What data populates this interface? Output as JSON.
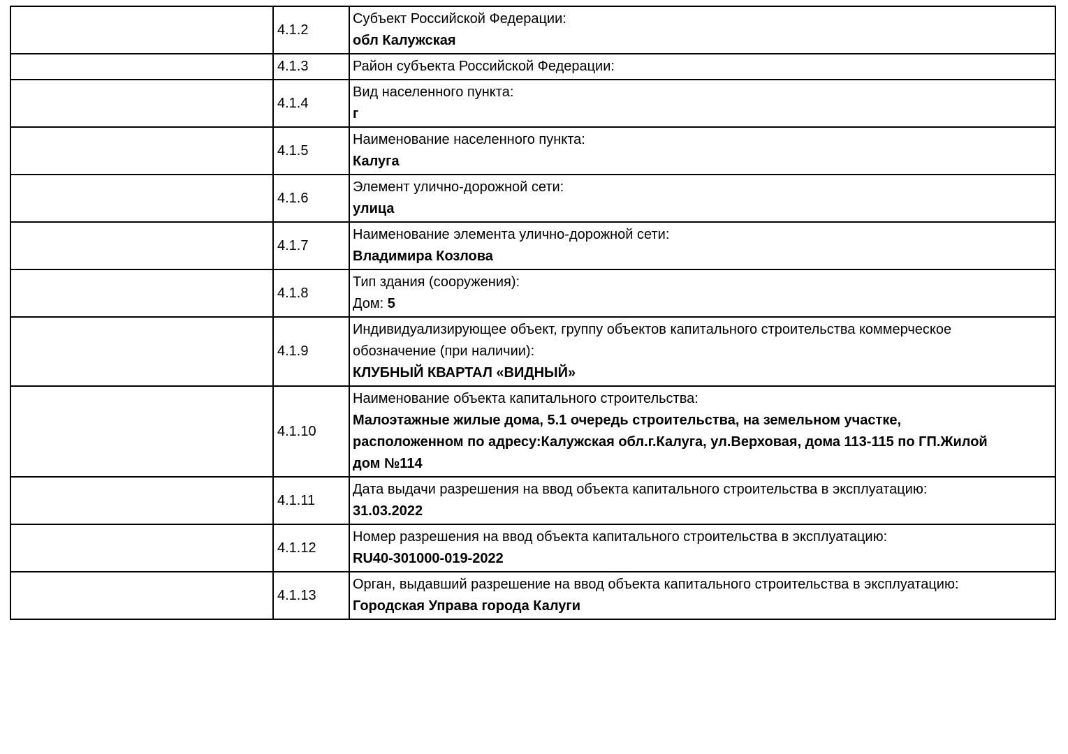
{
  "page": {
    "background": "#ffffff",
    "border_color": "#000000",
    "text_color": "#000000"
  },
  "table": {
    "rows": [
      {
        "num": "4.1.2",
        "label": "Субъект Российской Федерации:",
        "value_prefix": "",
        "value": "обл Калужская"
      },
      {
        "num": "4.1.3",
        "label": "Район субъекта Российской Федерации:",
        "value_prefix": "",
        "value": ""
      },
      {
        "num": "4.1.4",
        "label": "Вид населенного пункта:",
        "value_prefix": "",
        "value": "г"
      },
      {
        "num": "4.1.5",
        "label": "Наименование населенного пункта:",
        "value_prefix": "",
        "value": "Калуга"
      },
      {
        "num": "4.1.6",
        "label": "Элемент улично-дорожной сети:",
        "value_prefix": "",
        "value": "улица"
      },
      {
        "num": "4.1.7",
        "label": "Наименование элемента улично-дорожной сети:",
        "value_prefix": "",
        "value": "Владимира Козлова"
      },
      {
        "num": "4.1.8",
        "label": "Тип здания (сооружения):",
        "value_prefix": "Дом: ",
        "value": "5"
      },
      {
        "num": "4.1.9",
        "label": "Индивидуализирующее объект, группу объектов капитального строительства коммерческое\nобозначение (при наличии):",
        "value_prefix": "",
        "value": "КЛУБНЫЙ КВАРТАЛ «ВИДНЫЙ»"
      },
      {
        "num": "4.1.10",
        "label": "Наименование объекта капитального строительства:",
        "value_prefix": "",
        "value": "Малоэтажные жилые дома, 5.1 очередь строительства, на земельном участке,\nрасположенном по адресу:Калужская обл.г.Калуга, ул.Верховая, дома 113-115 по ГП.Жилой\nдом №114"
      },
      {
        "num": "4.1.11",
        "label": "Дата выдачи разрешения на ввод объекта капитального строительства в эксплуатацию:",
        "value_prefix": "",
        "value": "31.03.2022"
      },
      {
        "num": "4.1.12",
        "label": "Номер разрешения на ввод объекта капитального строительства в эксплуатацию:",
        "value_prefix": "",
        "value": "RU40-301000-019-2022"
      },
      {
        "num": "4.1.13",
        "label": "Орган, выдавший разрешение на ввод объекта капитального строительства в эксплуатацию:",
        "value_prefix": "",
        "value": "Городская Управа города Калуги"
      }
    ]
  }
}
